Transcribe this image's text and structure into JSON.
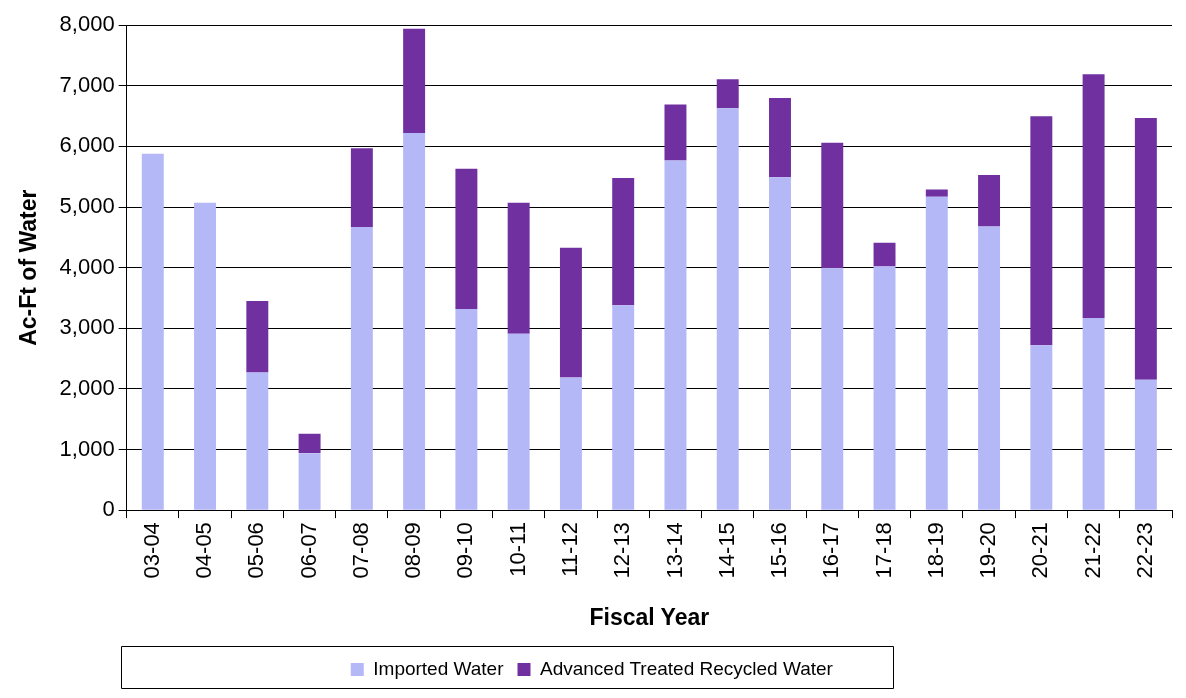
{
  "chart_data": {
    "type": "bar",
    "stacked": true,
    "xlabel": "Fiscal Year",
    "ylabel": "Ac-Ft of Water",
    "categories": [
      "03-04",
      "04-05",
      "05-06",
      "06-07",
      "07-08",
      "08-09",
      "09-10",
      "10-11",
      "11-12",
      "12-13",
      "13-14",
      "14-15",
      "15-16",
      "16-17",
      "17-18",
      "18-19",
      "19-20",
      "20-21",
      "21-22",
      "22-23"
    ],
    "series": [
      {
        "name": "Imported Water",
        "color": "#b4b8f6",
        "values": [
          5880,
          5070,
          2270,
          940,
          4670,
          6220,
          3320,
          2910,
          2190,
          3380,
          5770,
          6630,
          5490,
          3990,
          4020,
          5170,
          4680,
          2720,
          3170,
          2150
        ]
      },
      {
        "name": "Advanced Treated Recycled Water",
        "color": "#7030a0",
        "values": [
          0,
          0,
          1180,
          320,
          1300,
          1720,
          2310,
          2160,
          2140,
          2100,
          920,
          480,
          1310,
          2070,
          390,
          120,
          850,
          3780,
          4020,
          4320
        ]
      }
    ],
    "ylim": [
      0,
      8000
    ],
    "yticks": [
      {
        "value": 0,
        "label": "0"
      },
      {
        "value": 1000,
        "label": "1,000"
      },
      {
        "value": 2000,
        "label": "2,000"
      },
      {
        "value": 3000,
        "label": "3,000"
      },
      {
        "value": 4000,
        "label": "4,000"
      },
      {
        "value": 5000,
        "label": "5,000"
      },
      {
        "value": 6000,
        "label": "6,000"
      },
      {
        "value": 7000,
        "label": "7,000"
      },
      {
        "value": 8000,
        "label": "8,000"
      }
    ],
    "grid": "y",
    "legend": "bottom"
  }
}
